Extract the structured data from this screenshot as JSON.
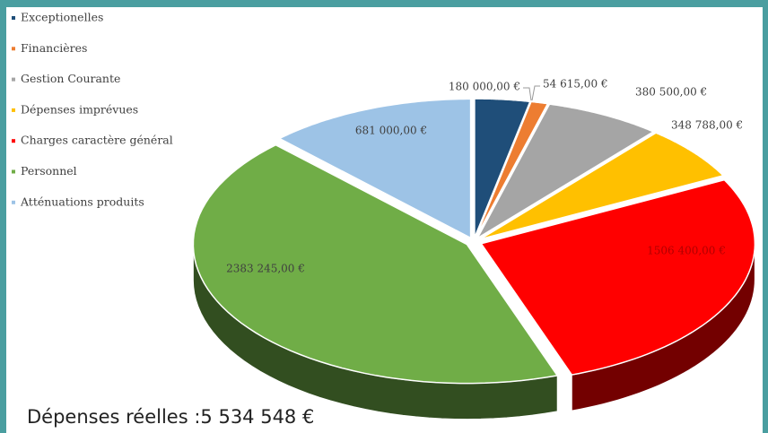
{
  "chart_data": {
    "type": "pie",
    "categories": [
      "Exceptionelles",
      "Financières",
      "Gestion Courante",
      "Dépenses imprévues",
      "Charges caractère général",
      "Personnel",
      "Atténuations produits"
    ],
    "values": [
      180000,
      54615,
      380500,
      348788,
      1506400,
      2383245,
      681000
    ],
    "value_labels": [
      "180 000,00 €",
      "54 615,00 €",
      "380 500,00 €",
      "348 788,00 €",
      "1506 400,00 €",
      "2383 245,00 €",
      "681 000,00 €"
    ],
    "colors": [
      "#1f4e79",
      "#ed7d31",
      "#a5a5a5",
      "#ffc000",
      "#ff0000",
      "#70ad47",
      "#9dc3e6"
    ],
    "legend": "top-left",
    "annotation": "Dépenses réelles :5 534 548 €"
  }
}
